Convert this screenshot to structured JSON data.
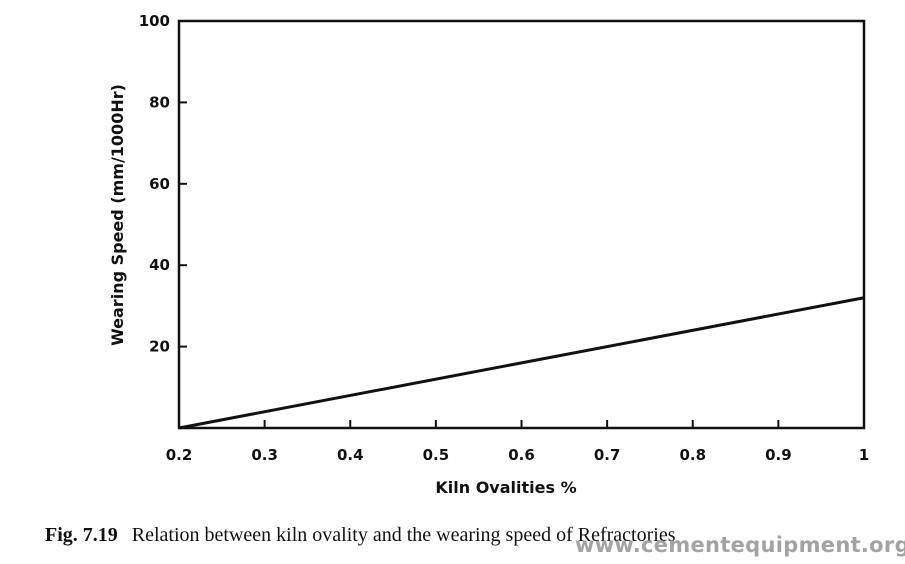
{
  "chart_data": {
    "type": "line",
    "title": "",
    "xlabel": "Kiln Ovalities %",
    "ylabel": "Wearing Speed  (mm/1000Hr)",
    "x_ticks": [
      "0.2",
      "0.3",
      "0.4",
      "0.5",
      "0.6",
      "0.7",
      "0.8",
      "0.9",
      "1"
    ],
    "y_ticks": [
      "20",
      "40",
      "60",
      "80",
      "100"
    ],
    "xlim": [
      0.2,
      1.0
    ],
    "ylim": [
      0,
      100
    ],
    "grid": false,
    "legend": "none",
    "series": [
      {
        "x": [
          0.2,
          1.0
        ],
        "y": [
          0,
          32
        ]
      }
    ]
  },
  "caption": {
    "figure_number": "Fig. 7.19",
    "text": "Relation between kiln ovality and the wearing speed of Refractories"
  },
  "watermark": "www.cementequipment.org"
}
